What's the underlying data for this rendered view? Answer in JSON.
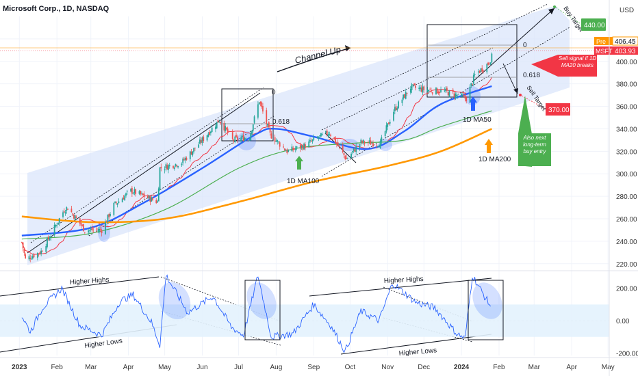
{
  "header": {
    "title": "Microsoft Corp., 1D, NASDAQ"
  },
  "currency": "USD",
  "colors": {
    "up_candle": "#26a69a",
    "down_candle": "#ef5350",
    "ma20": "#f23645",
    "ma50": "#2962ff",
    "ma100": "#4caf50",
    "ma200": "#ff9800",
    "channel_fill": "#dbe5fb",
    "oscillator": "#2962ff",
    "oscillator_band": "#e3f2fd",
    "buy_target_badge": "#4caf50",
    "sell_target_badge": "#f23645"
  },
  "chart_data": [
    {
      "type": "candlestick",
      "x_ticks": [
        "2023",
        "Feb",
        "Mar",
        "Apr",
        "May",
        "Jun",
        "Jul",
        "Aug",
        "Sep",
        "Oct",
        "Nov",
        "Dec",
        "2024",
        "Feb",
        "Mar",
        "Apr",
        "May"
      ],
      "y_ticks": [
        220,
        240,
        260,
        280,
        300,
        320,
        340,
        360,
        380,
        400,
        420
      ],
      "ylim": [
        215,
        440
      ],
      "price_badges": [
        {
          "label": "Pre",
          "value": "406.45"
        },
        {
          "label": "MSFT",
          "value": "403.93"
        }
      ],
      "price_path": [
        {
          "date": "2023-01-03",
          "close": 239
        },
        {
          "date": "2023-01-06",
          "close": 224
        },
        {
          "date": "2023-01-19",
          "close": 231
        },
        {
          "date": "2023-01-25",
          "close": 242
        },
        {
          "date": "2023-02-07",
          "close": 268
        },
        {
          "date": "2023-02-10",
          "close": 270
        },
        {
          "date": "2023-02-24",
          "close": 250
        },
        {
          "date": "2023-03-10",
          "close": 250
        },
        {
          "date": "2023-03-20",
          "close": 272
        },
        {
          "date": "2023-04-03",
          "close": 285
        },
        {
          "date": "2023-04-25",
          "close": 275
        },
        {
          "date": "2023-04-27",
          "close": 305
        },
        {
          "date": "2023-05-15",
          "close": 310
        },
        {
          "date": "2023-06-01",
          "close": 330
        },
        {
          "date": "2023-06-15",
          "close": 348
        },
        {
          "date": "2023-06-26",
          "close": 330
        },
        {
          "date": "2023-07-10",
          "close": 333
        },
        {
          "date": "2023-07-18",
          "close": 365
        },
        {
          "date": "2023-07-27",
          "close": 335
        },
        {
          "date": "2023-08-10",
          "close": 320
        },
        {
          "date": "2023-08-25",
          "close": 325
        },
        {
          "date": "2023-09-01",
          "close": 330
        },
        {
          "date": "2023-09-14",
          "close": 337
        },
        {
          "date": "2023-09-28",
          "close": 313
        },
        {
          "date": "2023-10-10",
          "close": 328
        },
        {
          "date": "2023-10-26",
          "close": 327
        },
        {
          "date": "2023-11-06",
          "close": 356
        },
        {
          "date": "2023-11-20",
          "close": 377
        },
        {
          "date": "2023-12-01",
          "close": 375
        },
        {
          "date": "2023-12-19",
          "close": 373
        },
        {
          "date": "2024-01-05",
          "close": 367
        },
        {
          "date": "2024-01-12",
          "close": 388
        },
        {
          "date": "2024-01-23",
          "close": 398
        },
        {
          "date": "2024-01-26",
          "close": 404
        }
      ],
      "moving_averages": [
        {
          "name": "1D MA50",
          "points": [
            {
              "date": "2023-01-03",
              "value": 245
            },
            {
              "date": "2023-03-01",
              "value": 252
            },
            {
              "date": "2023-04-15",
              "value": 275
            },
            {
              "date": "2023-06-01",
              "value": 305
            },
            {
              "date": "2023-07-15",
              "value": 335
            },
            {
              "date": "2023-08-01",
              "value": 340
            },
            {
              "date": "2023-09-01",
              "value": 333
            },
            {
              "date": "2023-10-15",
              "value": 322
            },
            {
              "date": "2023-11-15",
              "value": 338
            },
            {
              "date": "2023-12-15",
              "value": 362
            },
            {
              "date": "2024-01-26",
              "value": 378
            }
          ]
        },
        {
          "name": "1D MA100",
          "points": [
            {
              "date": "2023-01-03",
              "value": 242
            },
            {
              "date": "2023-03-01",
              "value": 247
            },
            {
              "date": "2023-05-01",
              "value": 268
            },
            {
              "date": "2023-07-01",
              "value": 305
            },
            {
              "date": "2023-08-15",
              "value": 322
            },
            {
              "date": "2023-10-01",
              "value": 327
            },
            {
              "date": "2023-11-15",
              "value": 330
            },
            {
              "date": "2023-12-15",
              "value": 342
            },
            {
              "date": "2024-01-26",
              "value": 356
            }
          ]
        },
        {
          "name": "1D MA200",
          "points": [
            {
              "date": "2023-01-03",
              "value": 262
            },
            {
              "date": "2023-03-01",
              "value": 257
            },
            {
              "date": "2023-05-01",
              "value": 260
            },
            {
              "date": "2023-07-01",
              "value": 275
            },
            {
              "date": "2023-09-01",
              "value": 293
            },
            {
              "date": "2023-11-01",
              "value": 307
            },
            {
              "date": "2023-12-15",
              "value": 320
            },
            {
              "date": "2024-01-26",
              "value": 340
            }
          ]
        }
      ],
      "fib_levels": [
        "0",
        "0.618"
      ],
      "annotations": [
        "Channel Up",
        "1D MA100",
        "1D MA50",
        "1D MA200"
      ],
      "callouts": {
        "buy_target": {
          "text": "Buy Target",
          "value": "440.00"
        },
        "sell_signal": "Sell signal if 1D MA20 breaks",
        "sell_target": {
          "text": "Sell Target",
          "value": "370.00"
        },
        "long_term": "Also next long-term buy entry"
      }
    },
    {
      "type": "line",
      "name": "oscillator",
      "y_ticks": [
        -200,
        0,
        200
      ],
      "y_tick_labels": [
        "-200.00",
        "0.00",
        "200.00"
      ],
      "ylim": [
        -215,
        300
      ],
      "annotations": [
        "Higher Highs",
        "Higher Lows",
        "Higher Highs",
        "Higher Lows"
      ],
      "values": [
        {
          "date": "2023-01-03",
          "value": 30
        },
        {
          "date": "2023-01-10",
          "value": -70
        },
        {
          "date": "2023-01-20",
          "value": 80
        },
        {
          "date": "2023-02-05",
          "value": 200
        },
        {
          "date": "2023-02-20",
          "value": -30
        },
        {
          "date": "2023-03-10",
          "value": -90
        },
        {
          "date": "2023-03-25",
          "value": 120
        },
        {
          "date": "2023-04-05",
          "value": 160
        },
        {
          "date": "2023-04-20",
          "value": -10
        },
        {
          "date": "2023-04-27",
          "value": -150
        },
        {
          "date": "2023-05-02",
          "value": 280
        },
        {
          "date": "2023-05-20",
          "value": 50
        },
        {
          "date": "2023-06-10",
          "value": 150
        },
        {
          "date": "2023-06-25",
          "value": -40
        },
        {
          "date": "2023-07-05",
          "value": -90
        },
        {
          "date": "2023-07-17",
          "value": 280
        },
        {
          "date": "2023-07-28",
          "value": -100
        },
        {
          "date": "2023-08-15",
          "value": -80
        },
        {
          "date": "2023-09-01",
          "value": 100
        },
        {
          "date": "2023-09-15",
          "value": -30
        },
        {
          "date": "2023-09-27",
          "value": -190
        },
        {
          "date": "2023-10-10",
          "value": 60
        },
        {
          "date": "2023-10-25",
          "value": 0
        },
        {
          "date": "2023-11-05",
          "value": 230
        },
        {
          "date": "2023-11-25",
          "value": 110
        },
        {
          "date": "2023-12-10",
          "value": 80
        },
        {
          "date": "2023-12-28",
          "value": -80
        },
        {
          "date": "2024-01-04",
          "value": -110
        },
        {
          "date": "2024-01-10",
          "value": 280
        },
        {
          "date": "2024-01-20",
          "value": 150
        },
        {
          "date": "2024-01-26",
          "value": 80
        }
      ]
    }
  ]
}
